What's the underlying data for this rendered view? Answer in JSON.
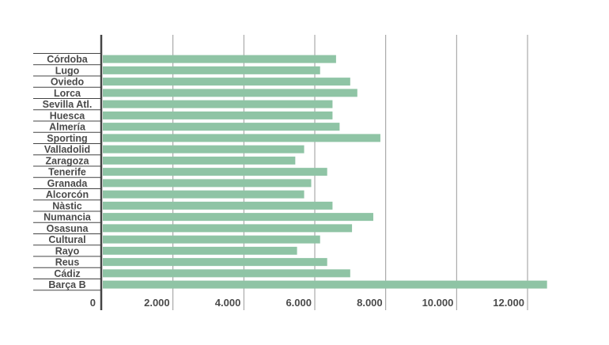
{
  "chart_data": {
    "type": "bar",
    "orientation": "horizontal",
    "title": "",
    "xlabel": "",
    "ylabel": "",
    "categories": [
      "Córdoba",
      "Lugo",
      "Oviedo",
      "Lorca",
      "Sevilla Atl.",
      "Huesca",
      "Almería",
      "Sporting",
      "Valladolid",
      "Zaragoza",
      "Tenerife",
      "Granada",
      "Alcorcón",
      "Nàstic",
      "Numancia",
      "Osasuna",
      "Cultural",
      "Rayo",
      "Reus",
      "Cádiz",
      "Barça B"
    ],
    "values": [
      6600,
      6150,
      7000,
      7200,
      6500,
      6500,
      6700,
      7850,
      5700,
      5450,
      6350,
      5900,
      5700,
      6500,
      7650,
      7050,
      6150,
      5500,
      6350,
      7000,
      12550
    ],
    "xlim": [
      0,
      13500
    ],
    "xticks": [
      0,
      2000,
      4000,
      6000,
      8000,
      10000,
      12000
    ],
    "xtick_labels": [
      "0",
      "2.000",
      "4.000",
      "6.000",
      "8.000",
      "10.000",
      "12.000"
    ],
    "grid": "vertical",
    "legend": "none",
    "colors": {
      "bar": "#8fc4a5",
      "axis": "#444444",
      "grid": "#9a9a9a",
      "text": "#4a4a4a"
    }
  }
}
